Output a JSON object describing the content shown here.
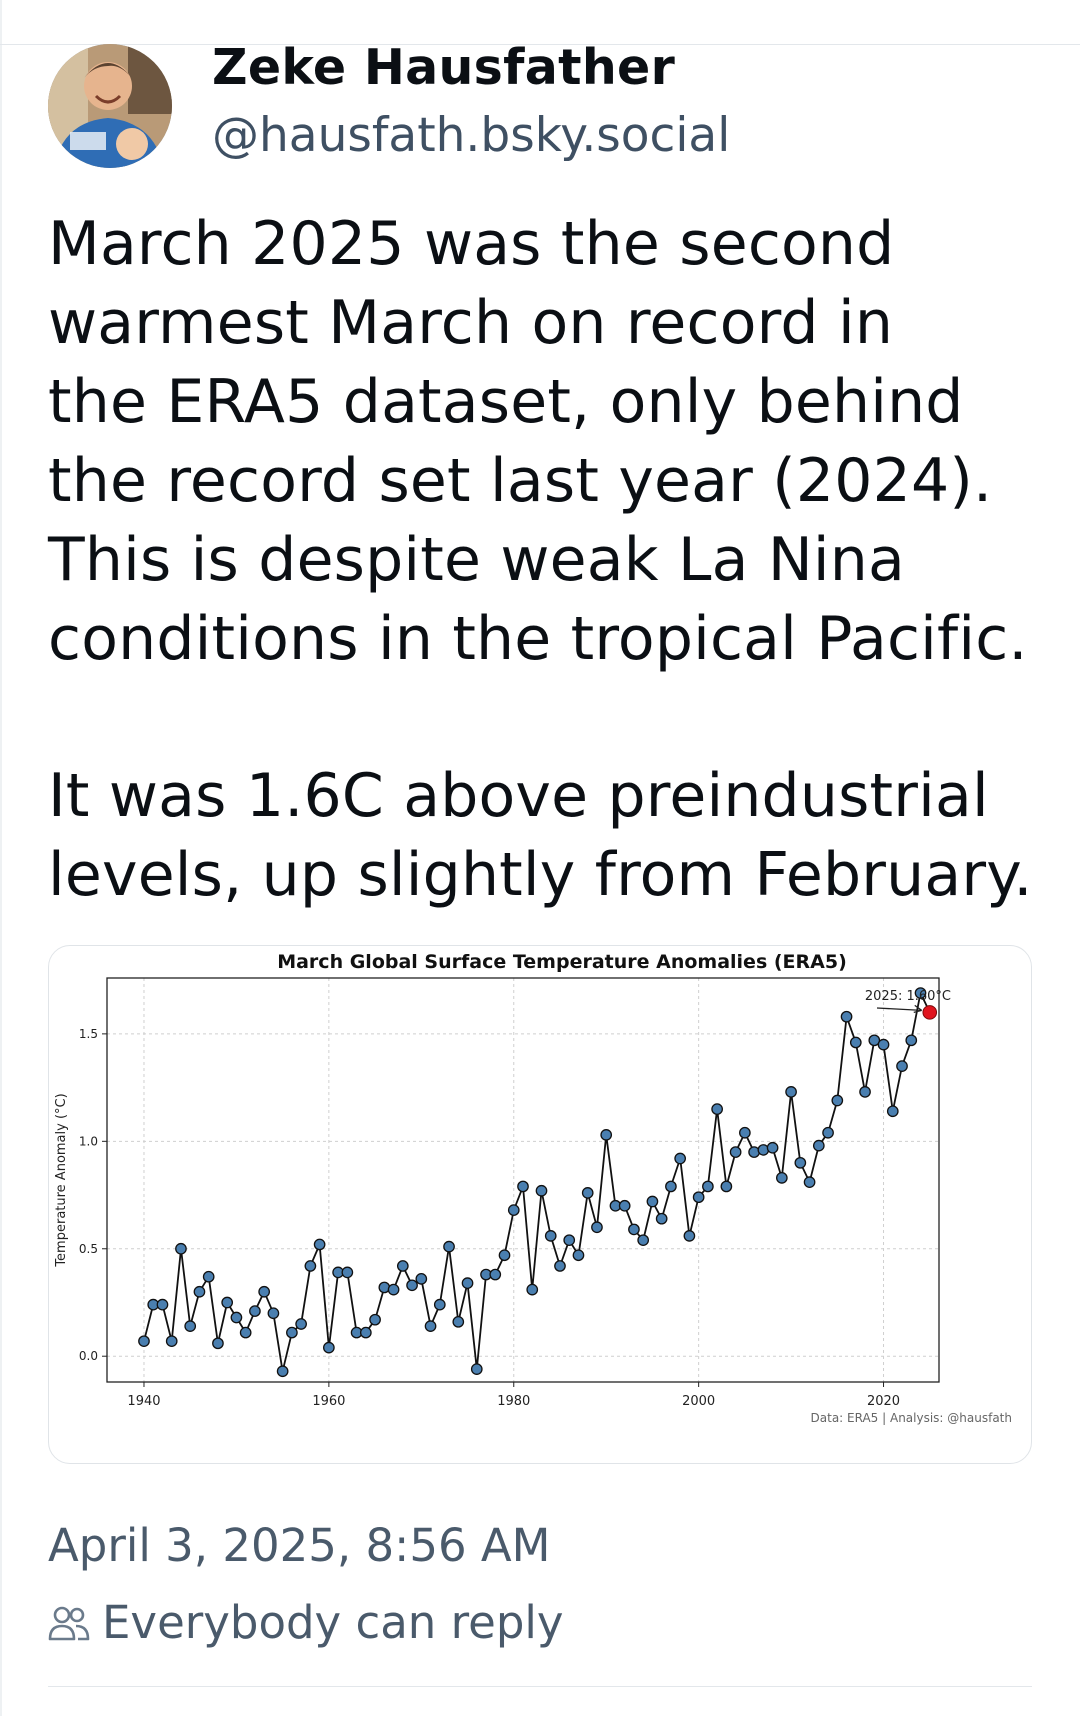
{
  "author": {
    "name": "Zeke Hausfather",
    "handle": "@hausfath.bsky.social",
    "avatar_icon": "person-photo-avatar"
  },
  "post": {
    "paragraph1": "March 2025 was the second\nwarmest March on record in\nthe ERA5 dataset, only behind\nthe record set last year (2024).\nThis is despite weak La Nina\nconditions in the tropical Pacific.",
    "paragraph2": "It was 1.6C above preindustrial\nlevels, up slightly from February."
  },
  "chart_data": {
    "type": "line",
    "title": "March Global Surface Temperature Anomalies (ERA5)",
    "ylabel": "Temperature Anomaly (°C)",
    "xlabel": "",
    "xlim": [
      1936,
      2026
    ],
    "ylim": [
      -0.12,
      1.76
    ],
    "x_ticks": [
      1940,
      1960,
      1980,
      2000,
      2020
    ],
    "y_ticks": [
      0.0,
      0.5,
      1.0,
      1.5
    ],
    "y_tick_labels": [
      "0.0",
      "0.5",
      "1.0",
      "1.5"
    ],
    "grid": true,
    "annotation": "2025: 1.60°C",
    "source_note": "Data: ERA5 | Analysis: @hausfath",
    "line_color": "#111111",
    "marker_color": "#4a7fb0",
    "highlight_color": "#e0141e",
    "series": [
      {
        "x": [
          1940,
          1941,
          1942,
          1943,
          1944,
          1945,
          1946,
          1947,
          1948,
          1949,
          1950,
          1951,
          1952,
          1953,
          1954,
          1955,
          1956,
          1957,
          1958,
          1959,
          1960,
          1961,
          1962,
          1963,
          1964,
          1965,
          1966,
          1967,
          1968,
          1969,
          1970,
          1971,
          1972,
          1973,
          1974,
          1975,
          1976,
          1977,
          1978,
          1979,
          1980,
          1981,
          1982,
          1983,
          1984,
          1985,
          1986,
          1987,
          1988,
          1989,
          1990,
          1991,
          1992,
          1993,
          1994,
          1995,
          1996,
          1997,
          1998,
          1999,
          2000,
          2001,
          2002,
          2003,
          2004,
          2005,
          2006,
          2007,
          2008,
          2009,
          2010,
          2011,
          2012,
          2013,
          2014,
          2015,
          2016,
          2017,
          2018,
          2019,
          2020,
          2021,
          2022,
          2023,
          2024
        ],
        "values": [
          0.07,
          0.24,
          0.24,
          0.07,
          0.5,
          0.14,
          0.3,
          0.37,
          0.06,
          0.25,
          0.18,
          0.11,
          0.21,
          0.3,
          0.2,
          -0.07,
          0.11,
          0.15,
          0.42,
          0.52,
          0.04,
          0.39,
          0.39,
          0.11,
          0.11,
          0.17,
          0.32,
          0.31,
          0.42,
          0.33,
          0.36,
          0.14,
          0.24,
          0.51,
          0.16,
          0.34,
          -0.06,
          0.38,
          0.38,
          0.47,
          0.68,
          0.79,
          0.31,
          0.77,
          0.56,
          0.42,
          0.54,
          0.47,
          0.76,
          0.6,
          1.03,
          0.7,
          0.7,
          0.59,
          0.54,
          0.72,
          0.64,
          0.79,
          0.92,
          0.56,
          0.74,
          0.79,
          1.15,
          0.79,
          0.95,
          1.04,
          0.95,
          0.96,
          0.97,
          0.83,
          1.23,
          0.9,
          0.81,
          0.98,
          1.04,
          1.19,
          1.58,
          1.46,
          1.23,
          1.47,
          1.45,
          1.14,
          1.35,
          1.47,
          1.69
        ]
      }
    ],
    "highlight": {
      "x": 2025,
      "value": 1.6
    }
  },
  "meta": {
    "timestamp": "April 3, 2025, 8:56 AM",
    "reply_setting": "Everybody can reply",
    "reply_icon": "people-icon"
  }
}
